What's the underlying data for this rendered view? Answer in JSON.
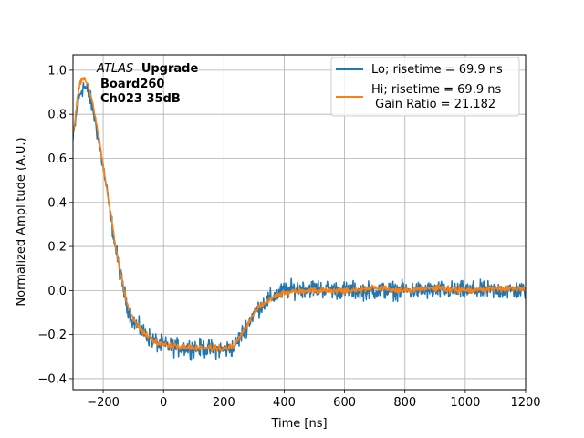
{
  "chart_data": {
    "type": "line",
    "xlabel": "Time [ns]",
    "ylabel": "Normalized Amplitude (A.U.)",
    "xlim": [
      -300,
      1200
    ],
    "ylim": [
      -0.45,
      1.07
    ],
    "xticks": [
      -200,
      0,
      200,
      400,
      600,
      800,
      1000,
      1200
    ],
    "yticks": [
      -0.4,
      -0.2,
      0.0,
      0.2,
      0.4,
      0.6,
      0.8,
      1.0
    ],
    "xtick_labels": [
      "−200",
      "0",
      "200",
      "400",
      "600",
      "800",
      "1000",
      "1200"
    ],
    "ytick_labels": [
      "−0.4",
      "−0.2",
      "0.0",
      "0.2",
      "0.4",
      "0.6",
      "0.8",
      "1.0"
    ],
    "grid": true,
    "annotation": {
      "line1_italic": "ATLAS",
      "line1_bold": "Upgrade",
      "line2": "Board260",
      "line3": "Ch023 35dB"
    },
    "legend": {
      "placement": "top-right",
      "entries": [
        {
          "line1": "Lo; risetime = 69.9 ns",
          "line2": ""
        },
        {
          "line1": "Hi; risetime = 69.9 ns",
          "line2": " Gain Ratio = 21.182"
        }
      ]
    },
    "series": [
      {
        "name": "Lo",
        "color": "#1f77b4",
        "noise": 0.035,
        "x": [
          -300,
          -285,
          -275,
          -265,
          -250,
          -235,
          -220,
          -200,
          -180,
          -160,
          -140,
          -120,
          -100,
          -80,
          -60,
          -40,
          -20,
          0,
          50,
          100,
          150,
          200,
          230,
          250,
          280,
          300,
          330,
          360,
          400,
          450,
          500,
          600,
          700,
          800,
          900,
          1000,
          1100,
          1200
        ],
        "y": [
          0.68,
          0.84,
          0.9,
          0.93,
          0.9,
          0.83,
          0.72,
          0.56,
          0.38,
          0.2,
          0.05,
          -0.07,
          -0.14,
          -0.17,
          -0.2,
          -0.22,
          -0.24,
          -0.25,
          -0.26,
          -0.26,
          -0.265,
          -0.27,
          -0.26,
          -0.22,
          -0.15,
          -0.1,
          -0.06,
          -0.03,
          0.0,
          0.01,
          0.01,
          0.0,
          0.0,
          0.0,
          0.0,
          0.0,
          0.0,
          0.0
        ]
      },
      {
        "name": "Hi",
        "color": "#ff7f0e",
        "noise": 0.012,
        "x": [
          -300,
          -285,
          -275,
          -265,
          -250,
          -235,
          -220,
          -200,
          -180,
          -160,
          -140,
          -120,
          -100,
          -80,
          -60,
          -40,
          -20,
          0,
          50,
          100,
          150,
          200,
          230,
          250,
          280,
          300,
          330,
          360,
          400,
          450,
          500,
          600,
          700,
          800,
          900,
          1000,
          1100,
          1200
        ],
        "y": [
          0.7,
          0.88,
          0.95,
          0.97,
          0.93,
          0.85,
          0.74,
          0.57,
          0.39,
          0.21,
          0.06,
          -0.06,
          -0.13,
          -0.17,
          -0.2,
          -0.22,
          -0.235,
          -0.245,
          -0.255,
          -0.26,
          -0.26,
          -0.265,
          -0.255,
          -0.22,
          -0.15,
          -0.1,
          -0.06,
          -0.03,
          -0.01,
          0.0,
          0.0,
          0.0,
          0.01,
          0.0,
          0.01,
          0.0,
          0.01,
          0.01
        ]
      }
    ]
  }
}
